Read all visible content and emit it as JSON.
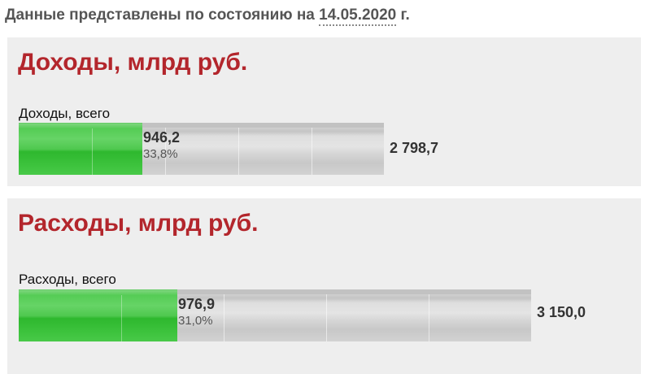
{
  "header": {
    "prefix": "Данные представлены по состоянию на",
    "date": "14.05.2020",
    "suffix": "г."
  },
  "panels": [
    {
      "title": "Доходы, млрд руб.",
      "bar_label": "Доходы, всего",
      "value": "946,2",
      "percent": "33,8%",
      "fill_fraction": 0.338,
      "total": "2 798,7"
    },
    {
      "title": "Расходы, млрд руб.",
      "bar_label": "Расходы, всего",
      "value": "976,9",
      "percent": "31,0%",
      "fill_fraction": 0.31,
      "total": "3 150,0"
    }
  ],
  "colors": {
    "title": "#b3262c",
    "fill": "#3fc43f",
    "track": "#d6d6d6"
  }
}
